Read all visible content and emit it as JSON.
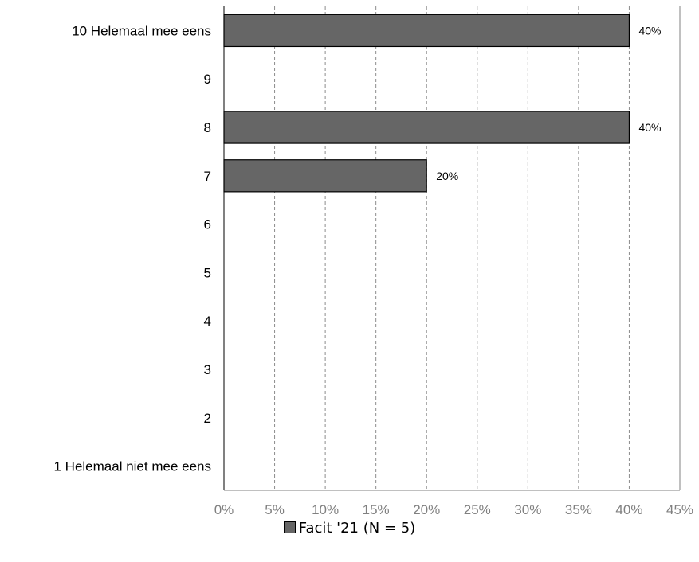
{
  "chart_data": {
    "type": "bar",
    "orientation": "horizontal",
    "categories": [
      "10 Helemaal mee eens",
      "9",
      "8",
      "7",
      "6",
      "5",
      "4",
      "3",
      "2",
      "1 Helemaal niet mee eens"
    ],
    "series": [
      {
        "name": "Facit '21 (N = 5)",
        "values": [
          40,
          0,
          40,
          20,
          0,
          0,
          0,
          0,
          0,
          0
        ],
        "data_labels": [
          "40%",
          "",
          "40%",
          "20%",
          "",
          "",
          "",
          "",
          "",
          ""
        ],
        "color": "#666666"
      }
    ],
    "xaxis": {
      "ticks": [
        0,
        5,
        10,
        15,
        20,
        25,
        30,
        35,
        40,
        45
      ],
      "tick_labels": [
        "0%",
        "5%",
        "10%",
        "15%",
        "20%",
        "25%",
        "30%",
        "35%",
        "40%",
        "45%"
      ],
      "xlim": [
        0,
        45
      ]
    },
    "grid": "vertical-dashed",
    "legend_position": "bottom"
  }
}
